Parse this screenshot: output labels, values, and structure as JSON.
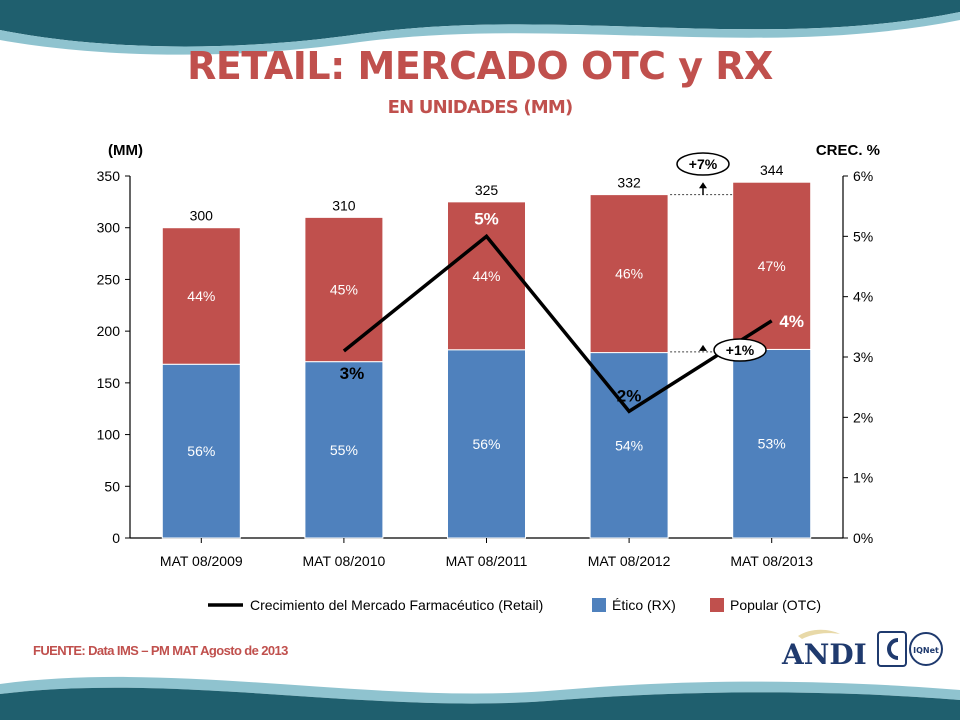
{
  "slide": {
    "title": "RETAIL: MERCADO OTC y RX",
    "subtitle": "EN UNIDADES (MM)",
    "source": "FUENTE: Data IMS – PM MAT Agosto de 2013",
    "logo_text": "ANDI",
    "logo_badge": "IQNet",
    "colors": {
      "title": "#c0504d",
      "etico": "#4f81bd",
      "popular": "#c0504d",
      "line": "#000000",
      "band": "#1f5f6e"
    }
  },
  "chart_data": {
    "type": "bar",
    "stacked": true,
    "categories": [
      "MAT 08/2009",
      "MAT 08/2010",
      "MAT 08/2011",
      "MAT 08/2012",
      "MAT 08/2013"
    ],
    "totals": [
      300,
      310,
      325,
      332,
      344
    ],
    "total_labels": [
      "300",
      "310",
      "325",
      "332",
      "344"
    ],
    "series": [
      {
        "name": "Ético (RX)",
        "share": [
          56,
          55,
          56,
          54,
          53
        ],
        "share_labels": [
          "56%",
          "55%",
          "56%",
          "54%",
          "53%"
        ],
        "color": "#4f81bd"
      },
      {
        "name": "Popular (OTC)",
        "share": [
          44,
          45,
          44,
          46,
          47
        ],
        "share_labels": [
          "44%",
          "45%",
          "44%",
          "46%",
          "47%"
        ],
        "color": "#c0504d"
      }
    ],
    "line": {
      "name": "Crecimiento del Mercado Farmacéutico (Retail)",
      "axis": "right",
      "x": [
        "MAT 08/2010",
        "MAT 08/2011",
        "MAT 08/2012",
        "MAT 08/2013"
      ],
      "values": [
        3.1,
        5.0,
        2.1,
        3.6
      ],
      "labels": [
        "3%",
        "5%",
        "2%",
        "4%"
      ],
      "color": "#000000"
    },
    "annotations": [
      {
        "text": "+7%",
        "x": "MAT 08/2013",
        "from": 332,
        "to": 344,
        "series": "Popular (OTC)"
      },
      {
        "text": "+1%",
        "x": "MAT 08/2013",
        "from": 180,
        "to": 182,
        "series": "Ético (RX)"
      }
    ],
    "y_left": {
      "label": "(MM)",
      "ylim": [
        0,
        350
      ],
      "ticks": [
        0,
        50,
        100,
        150,
        200,
        250,
        300,
        350
      ]
    },
    "y_right": {
      "label": "CREC. %",
      "ylim": [
        0,
        6
      ],
      "ticks": [
        "0%",
        "1%",
        "2%",
        "3%",
        "4%",
        "5%",
        "6%"
      ]
    },
    "legend": {
      "placement": "bottom",
      "entries": [
        "Crecimiento del Mercado Farmacéutico (Retail)",
        "Ético (RX)",
        "Popular (OTC)"
      ]
    },
    "grid": false
  }
}
